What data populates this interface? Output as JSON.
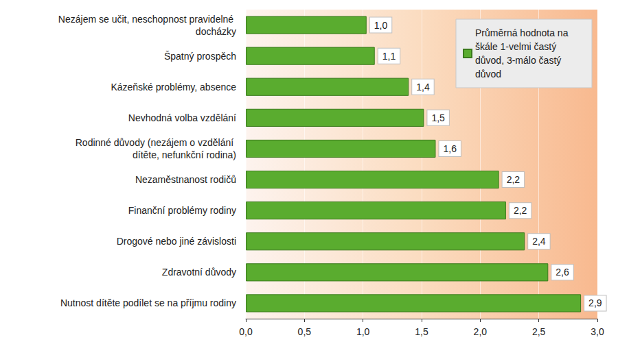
{
  "chart_data": {
    "type": "bar",
    "orientation": "horizontal",
    "categories": [
      "Nezájem se učit, neschopnost pravidelné docházky",
      "Špatný prospěch",
      "Kázeňské problémy, absence",
      "Nevhodná volba vzdělání",
      "Rodinné důvody (nezájem o vzdělání dítěte, nefunkční rodina)",
      "Nezaměstnanost rodičů",
      "Finanční problémy rodiny",
      "Drogové nebo jiné závislosti",
      "Zdravotní důvody",
      "Nutnost dítěte podílet se na příjmu rodiny"
    ],
    "series": [
      {
        "name": "Průměrná hodnota na škále 1-velmi častý důvod, 3-málo častý důvod",
        "color": "#5aac2f",
        "values": [
          1.03,
          1.1,
          1.39,
          1.52,
          1.62,
          2.16,
          2.22,
          2.38,
          2.58,
          2.86
        ],
        "value_labels": [
          "1,0",
          "1,1",
          "1,4",
          "1,5",
          "1,6",
          "2,2",
          "2,2",
          "2,4",
          "2,6",
          "2,9"
        ]
      }
    ],
    "xlim": [
      0,
      3
    ],
    "xticks": [
      {
        "value": 0,
        "label": "0,0"
      },
      {
        "value": 0.5,
        "label": "0,5"
      },
      {
        "value": 1,
        "label": "1,0"
      },
      {
        "value": 1.5,
        "label": "1,5"
      },
      {
        "value": 2,
        "label": "2,0"
      },
      {
        "value": 2.5,
        "label": "2,5"
      },
      {
        "value": 3,
        "label": "3,0"
      }
    ],
    "data_labels": true,
    "legend": "top-right",
    "grid": true
  }
}
